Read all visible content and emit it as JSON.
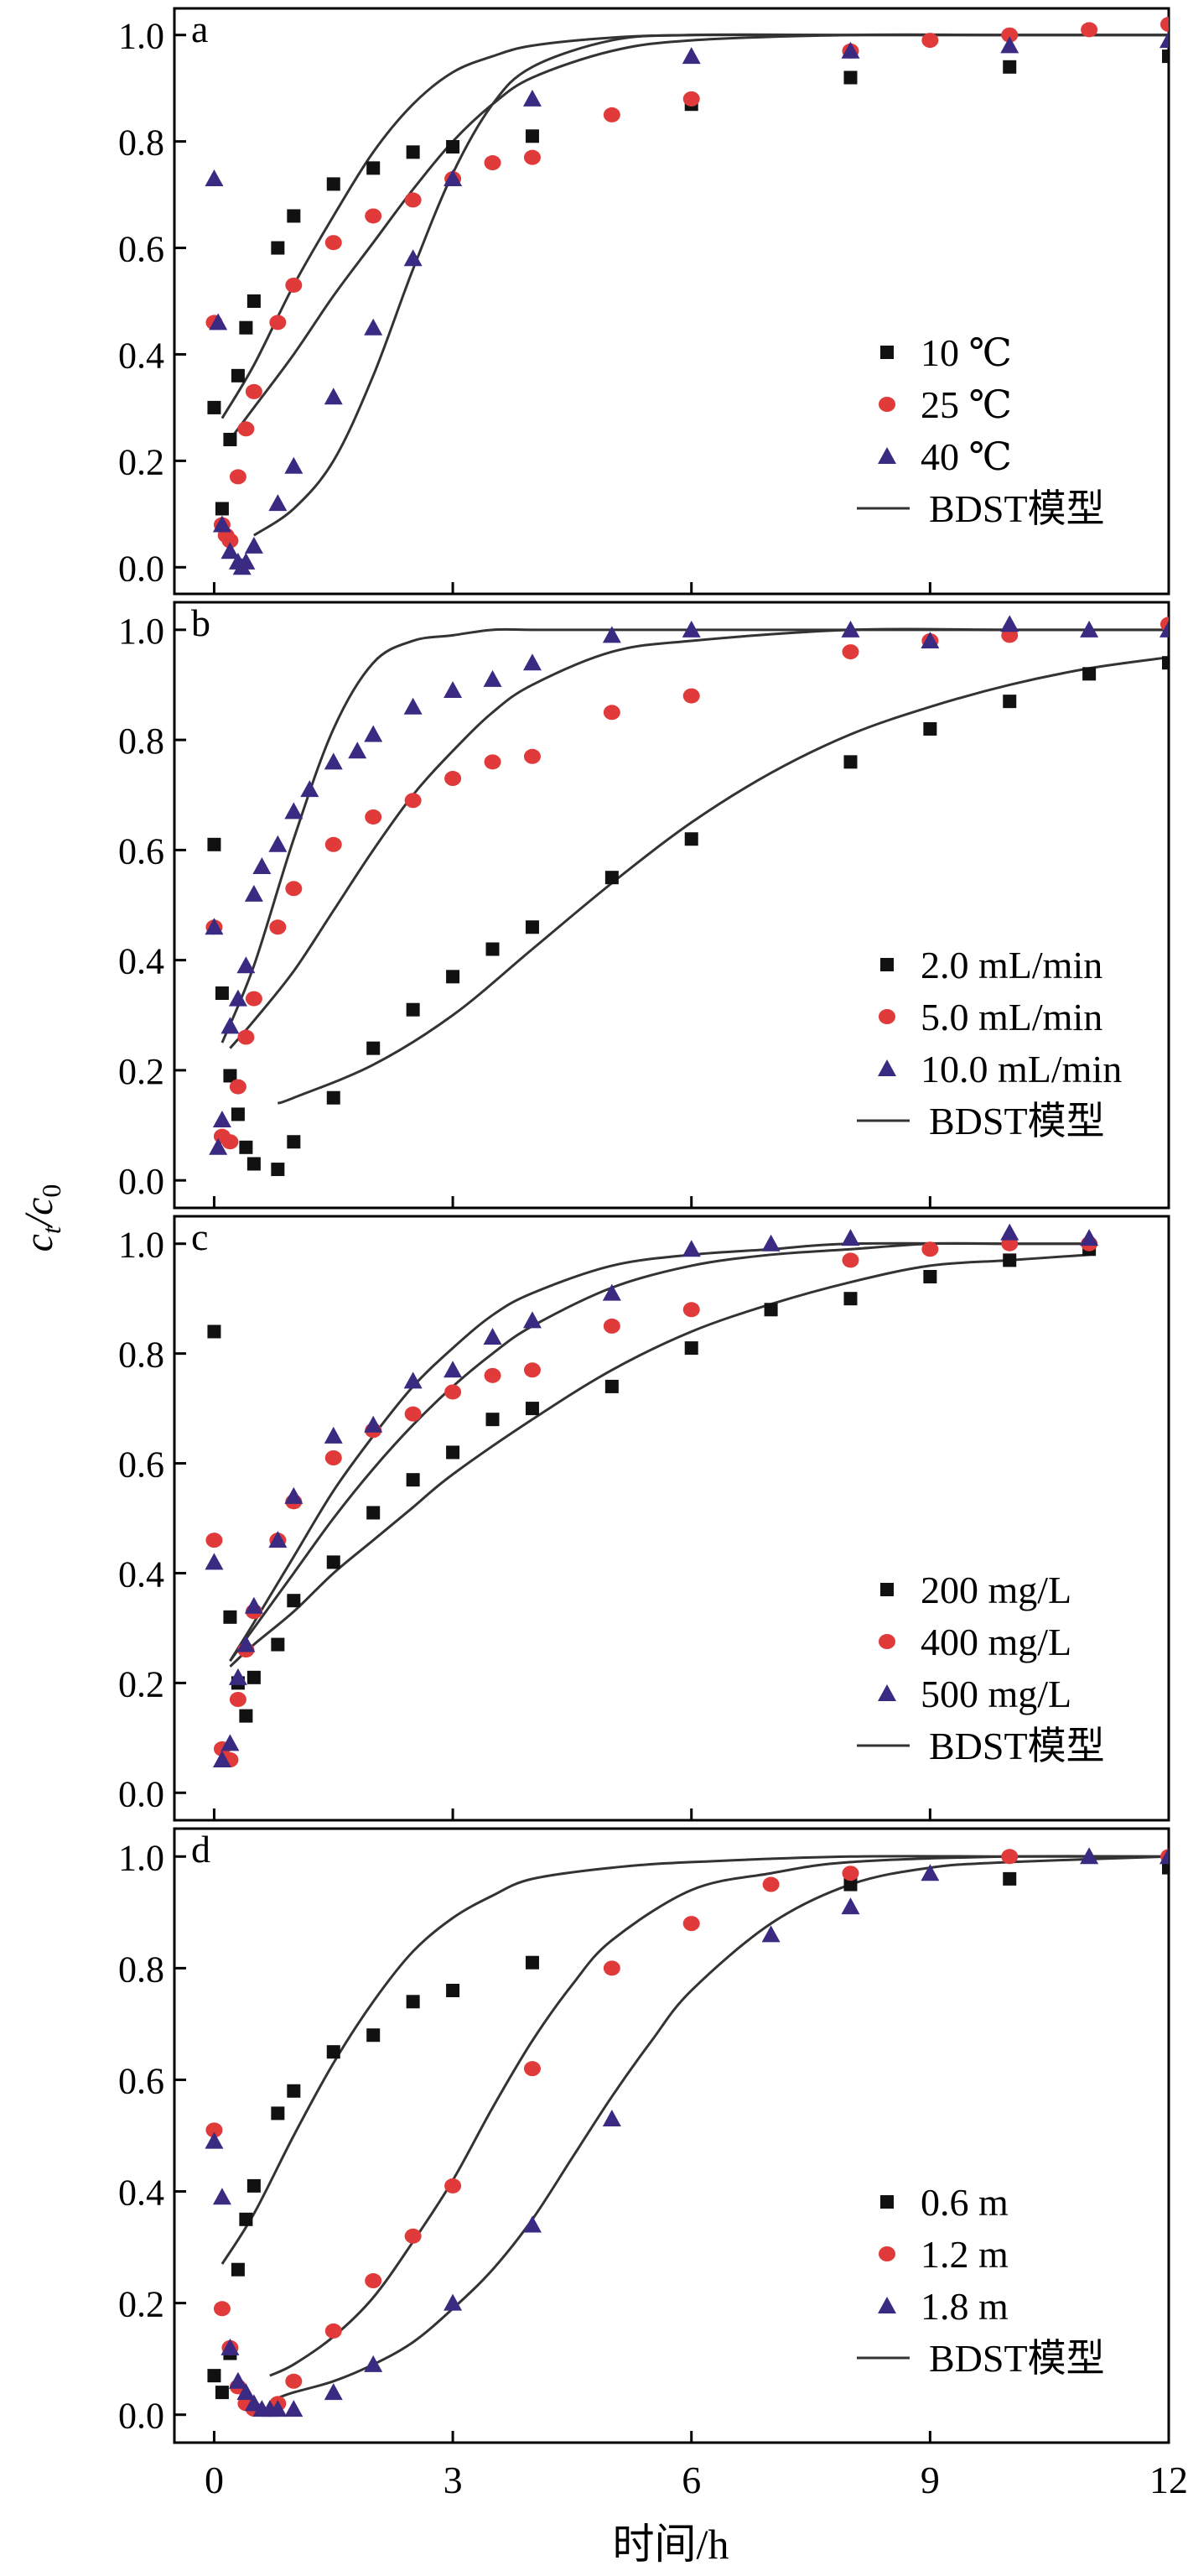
{
  "figure": {
    "ylabel_main": "c",
    "ylabel_sub_t": "t",
    "ylabel_sep": "/c",
    "ylabel_sub_0": "0",
    "xlabel": "时间/h",
    "x_ticks": [
      "0",
      "3",
      "6",
      "9",
      "12"
    ],
    "y_ticks": [
      "0.0",
      "0.2",
      "0.4",
      "0.6",
      "0.8",
      "1.0"
    ],
    "colors": {
      "black": "#111111",
      "red": "#e03a3a",
      "purple": "#3a2a82",
      "line": "#333333"
    },
    "model_legend": "BDST模型"
  },
  "chart_data": [
    {
      "panel": "a",
      "type": "scatter",
      "xlim": [
        -0.5,
        12
      ],
      "ylim": [
        -0.05,
        1.05
      ],
      "series": [
        {
          "name": "10 ℃",
          "marker": "square",
          "color": "#111111",
          "x": [
            0,
            0.1,
            0.2,
            0.3,
            0.4,
            0.5,
            0.8,
            1,
            1.5,
            2,
            2.5,
            3,
            4,
            6,
            8,
            10,
            12
          ],
          "y": [
            0.3,
            0.11,
            0.24,
            0.36,
            0.45,
            0.5,
            0.6,
            0.66,
            0.72,
            0.75,
            0.78,
            0.79,
            0.81,
            0.87,
            0.92,
            0.94,
            0.96
          ],
          "model": {
            "x": [
              0.1,
              0.5,
              1,
              1.5,
              2,
              2.5,
              3,
              3.5,
              4,
              5,
              6,
              8,
              10,
              12
            ],
            "y": [
              0.28,
              0.38,
              0.53,
              0.66,
              0.78,
              0.87,
              0.93,
              0.96,
              0.98,
              0.995,
              1.0,
              1.0,
              1.0,
              1.0
            ]
          }
        },
        {
          "name": "25 ℃",
          "marker": "circle",
          "color": "#e03a3a",
          "x": [
            0,
            0.1,
            0.15,
            0.2,
            0.3,
            0.4,
            0.5,
            0.8,
            1,
            1.5,
            2,
            2.5,
            3,
            3.5,
            4,
            5,
            6,
            8,
            9,
            10,
            11,
            12
          ],
          "y": [
            0.46,
            0.08,
            0.06,
            0.05,
            0.17,
            0.26,
            0.33,
            0.46,
            0.53,
            0.61,
            0.66,
            0.69,
            0.73,
            0.76,
            0.77,
            0.85,
            0.88,
            0.97,
            0.99,
            1.0,
            1.01,
            1.02
          ],
          "model": {
            "x": [
              0.2,
              0.5,
              1,
              1.5,
              2,
              2.5,
              3,
              3.5,
              4,
              5,
              6,
              8,
              10,
              12
            ],
            "y": [
              0.24,
              0.3,
              0.4,
              0.51,
              0.61,
              0.71,
              0.8,
              0.87,
              0.92,
              0.97,
              0.99,
              1.0,
              1.0,
              1.0
            ]
          }
        },
        {
          "name": "40 ℃",
          "marker": "triangle",
          "color": "#3a2a82",
          "x": [
            0,
            0.05,
            0.1,
            0.2,
            0.3,
            0.35,
            0.4,
            0.5,
            0.8,
            1,
            1.5,
            2,
            2.5,
            3,
            4,
            6,
            8,
            10,
            12
          ],
          "y": [
            0.73,
            0.46,
            0.08,
            0.03,
            0.01,
            0.0,
            0.01,
            0.04,
            0.12,
            0.19,
            0.32,
            0.45,
            0.58,
            0.73,
            0.88,
            0.96,
            0.97,
            0.98,
            0.99
          ],
          "model": {
            "x": [
              0.5,
              1,
              1.5,
              2,
              2.5,
              3,
              3.5,
              4,
              5,
              6,
              8,
              10,
              12
            ],
            "y": [
              0.06,
              0.11,
              0.2,
              0.36,
              0.56,
              0.74,
              0.87,
              0.94,
              0.99,
              1.0,
              1.0,
              1.0,
              1.0
            ]
          }
        }
      ]
    },
    {
      "panel": "b",
      "type": "scatter",
      "xlim": [
        -0.5,
        12
      ],
      "ylim": [
        -0.05,
        1.05
      ],
      "series": [
        {
          "name": "2.0 mL/min",
          "marker": "square",
          "color": "#111111",
          "x": [
            0,
            0.1,
            0.2,
            0.3,
            0.4,
            0.5,
            0.8,
            1,
            1.5,
            2,
            2.5,
            3,
            3.5,
            4,
            5,
            6,
            8,
            9,
            10,
            11,
            12
          ],
          "y": [
            0.61,
            0.34,
            0.19,
            0.12,
            0.06,
            0.03,
            0.02,
            0.07,
            0.15,
            0.24,
            0.31,
            0.37,
            0.42,
            0.46,
            0.55,
            0.62,
            0.76,
            0.82,
            0.87,
            0.92,
            0.94
          ],
          "model": {
            "x": [
              0.8,
              1,
              2,
              3,
              4,
              5,
              6,
              7,
              8,
              9,
              10,
              11,
              12
            ],
            "y": [
              0.14,
              0.15,
              0.21,
              0.3,
              0.42,
              0.54,
              0.65,
              0.74,
              0.81,
              0.86,
              0.9,
              0.93,
              0.95
            ]
          }
        },
        {
          "name": "5.0 mL/min",
          "marker": "circle",
          "color": "#e03a3a",
          "x": [
            0,
            0.1,
            0.2,
            0.3,
            0.4,
            0.5,
            0.8,
            1,
            1.5,
            2,
            2.5,
            3,
            3.5,
            4,
            5,
            6,
            8,
            9,
            10,
            12
          ],
          "y": [
            0.46,
            0.08,
            0.07,
            0.17,
            0.26,
            0.33,
            0.46,
            0.53,
            0.61,
            0.66,
            0.69,
            0.73,
            0.76,
            0.77,
            0.85,
            0.88,
            0.96,
            0.98,
            0.99,
            1.01
          ],
          "model": {
            "x": [
              0.2,
              0.5,
              1,
              1.5,
              2,
              2.5,
              3,
              3.5,
              4,
              5,
              6,
              8,
              10,
              12
            ],
            "y": [
              0.24,
              0.29,
              0.38,
              0.49,
              0.6,
              0.7,
              0.78,
              0.85,
              0.9,
              0.96,
              0.98,
              1.0,
              1.0,
              1.0
            ]
          }
        },
        {
          "name": "10.0 mL/min",
          "marker": "triangle",
          "color": "#3a2a82",
          "x": [
            0,
            0.05,
            0.1,
            0.2,
            0.3,
            0.4,
            0.5,
            0.6,
            0.8,
            1,
            1.2,
            1.5,
            1.8,
            2,
            2.5,
            3,
            3.5,
            4,
            5,
            6,
            8,
            9,
            10,
            11,
            12
          ],
          "y": [
            0.46,
            0.06,
            0.11,
            0.28,
            0.33,
            0.39,
            0.52,
            0.57,
            0.61,
            0.67,
            0.71,
            0.76,
            0.78,
            0.81,
            0.86,
            0.89,
            0.91,
            0.94,
            0.99,
            1.0,
            1.0,
            0.98,
            1.01,
            1.0,
            1.0
          ],
          "model": {
            "x": [
              0.1,
              0.5,
              1,
              1.5,
              2,
              2.5,
              3,
              3.5,
              4,
              5,
              6,
              8,
              10,
              12
            ],
            "y": [
              0.25,
              0.39,
              0.62,
              0.82,
              0.94,
              0.98,
              0.99,
              1.0,
              1.0,
              1.0,
              1.0,
              1.0,
              1.0,
              1.0
            ]
          }
        }
      ]
    },
    {
      "panel": "c",
      "type": "scatter",
      "xlim": [
        -0.5,
        12
      ],
      "ylim": [
        -0.05,
        1.05
      ],
      "series": [
        {
          "name": "200 mg/L",
          "marker": "square",
          "color": "#111111",
          "x": [
            0,
            0.2,
            0.3,
            0.4,
            0.5,
            0.8,
            1,
            1.5,
            2,
            2.5,
            3,
            3.5,
            4,
            5,
            6,
            7,
            8,
            9,
            10,
            11
          ],
          "y": [
            0.84,
            0.32,
            0.2,
            0.14,
            0.21,
            0.27,
            0.35,
            0.42,
            0.51,
            0.57,
            0.62,
            0.68,
            0.7,
            0.74,
            0.81,
            0.88,
            0.9,
            0.94,
            0.97,
            0.99
          ],
          "model": {
            "x": [
              0.2,
              0.5,
              1,
              1.5,
              2,
              2.5,
              3,
              4,
              5,
              6,
              7,
              8,
              9,
              10,
              11
            ],
            "y": [
              0.23,
              0.27,
              0.33,
              0.4,
              0.46,
              0.52,
              0.58,
              0.68,
              0.77,
              0.84,
              0.89,
              0.93,
              0.96,
              0.97,
              0.98
            ]
          }
        },
        {
          "name": "400 mg/L",
          "marker": "circle",
          "color": "#e03a3a",
          "x": [
            0,
            0.1,
            0.2,
            0.3,
            0.4,
            0.5,
            0.8,
            1,
            1.5,
            2,
            2.5,
            3,
            3.5,
            4,
            5,
            6,
            8,
            9,
            10,
            11
          ],
          "y": [
            0.46,
            0.08,
            0.06,
            0.17,
            0.26,
            0.33,
            0.46,
            0.53,
            0.61,
            0.66,
            0.69,
            0.73,
            0.76,
            0.77,
            0.85,
            0.88,
            0.97,
            0.99,
            1.0,
            1.0
          ],
          "model": {
            "x": [
              0.2,
              0.5,
              1,
              1.5,
              2,
              2.5,
              3,
              3.5,
              4,
              5,
              6,
              7,
              8,
              9,
              10,
              11
            ],
            "y": [
              0.24,
              0.3,
              0.4,
              0.5,
              0.59,
              0.67,
              0.74,
              0.8,
              0.85,
              0.92,
              0.96,
              0.98,
              0.99,
              1.0,
              1.0,
              1.0
            ]
          }
        },
        {
          "name": "500 mg/L",
          "marker": "triangle",
          "color": "#3a2a82",
          "x": [
            0,
            0.1,
            0.2,
            0.3,
            0.4,
            0.5,
            0.8,
            1,
            1.5,
            2,
            2.5,
            3,
            3.5,
            4,
            5,
            6,
            7,
            8,
            10,
            11
          ],
          "y": [
            0.42,
            0.06,
            0.09,
            0.21,
            0.27,
            0.34,
            0.46,
            0.54,
            0.65,
            0.67,
            0.75,
            0.77,
            0.83,
            0.86,
            0.91,
            0.99,
            1.0,
            1.01,
            1.02,
            1.01
          ],
          "model": {
            "x": [
              0.2,
              0.5,
              1,
              1.5,
              2,
              2.5,
              3,
              3.5,
              4,
              5,
              6,
              7,
              8,
              10,
              11
            ],
            "y": [
              0.24,
              0.31,
              0.43,
              0.55,
              0.65,
              0.74,
              0.81,
              0.87,
              0.91,
              0.96,
              0.98,
              0.99,
              1.0,
              1.0,
              1.0
            ]
          }
        }
      ]
    },
    {
      "panel": "d",
      "type": "scatter",
      "xlim": [
        -0.5,
        12
      ],
      "ylim": [
        -0.05,
        1.05
      ],
      "series": [
        {
          "name": "0.6 m",
          "marker": "square",
          "color": "#111111",
          "x": [
            0,
            0.1,
            0.2,
            0.3,
            0.4,
            0.5,
            0.8,
            1,
            1.5,
            2,
            2.5,
            3,
            4,
            8,
            10,
            12
          ],
          "y": [
            0.07,
            0.04,
            0.11,
            0.26,
            0.35,
            0.41,
            0.54,
            0.58,
            0.65,
            0.68,
            0.74,
            0.76,
            0.81,
            0.95,
            0.96,
            0.98
          ],
          "model": {
            "x": [
              0.1,
              0.5,
              1,
              1.5,
              2,
              2.5,
              3,
              3.5,
              4,
              5,
              6,
              8,
              10,
              12
            ],
            "y": [
              0.27,
              0.36,
              0.5,
              0.63,
              0.74,
              0.83,
              0.89,
              0.93,
              0.96,
              0.98,
              0.99,
              1.0,
              1.0,
              1.0
            ]
          }
        },
        {
          "name": "1.2 m",
          "marker": "circle",
          "color": "#e03a3a",
          "x": [
            0,
            0.1,
            0.2,
            0.3,
            0.4,
            0.5,
            0.8,
            1,
            1.5,
            2,
            2.5,
            3,
            4,
            5,
            6,
            7,
            8,
            10,
            12
          ],
          "y": [
            0.51,
            0.19,
            0.12,
            0.05,
            0.02,
            0.01,
            0.02,
            0.06,
            0.15,
            0.24,
            0.32,
            0.41,
            0.62,
            0.8,
            0.88,
            0.95,
            0.97,
            1.0,
            1.0
          ],
          "model": {
            "x": [
              0.7,
              1,
              1.5,
              2,
              2.5,
              3,
              3.5,
              4,
              4.5,
              5,
              6,
              7,
              8,
              10,
              12
            ],
            "y": [
              0.07,
              0.09,
              0.14,
              0.21,
              0.31,
              0.42,
              0.55,
              0.67,
              0.77,
              0.85,
              0.94,
              0.97,
              0.99,
              1.0,
              1.0
            ]
          }
        },
        {
          "name": "1.8 m",
          "marker": "triangle",
          "color": "#3a2a82",
          "x": [
            0,
            0.1,
            0.2,
            0.3,
            0.4,
            0.5,
            0.6,
            0.7,
            0.8,
            1,
            1.5,
            2,
            3,
            4,
            5,
            7,
            8,
            9,
            11,
            12
          ],
          "y": [
            0.49,
            0.39,
            0.12,
            0.06,
            0.04,
            0.02,
            0.01,
            0.01,
            0.01,
            0.01,
            0.04,
            0.09,
            0.2,
            0.34,
            0.53,
            0.86,
            0.91,
            0.97,
            1.0,
            1.0
          ],
          "model": {
            "x": [
              0.8,
              1,
              1.5,
              2,
              2.5,
              3,
              3.5,
              4,
              4.5,
              5,
              5.5,
              6,
              7,
              8,
              9,
              10,
              12
            ],
            "y": [
              0.03,
              0.04,
              0.06,
              0.09,
              0.13,
              0.19,
              0.26,
              0.35,
              0.46,
              0.57,
              0.67,
              0.76,
              0.88,
              0.95,
              0.98,
              0.99,
              1.0
            ]
          }
        }
      ]
    }
  ]
}
